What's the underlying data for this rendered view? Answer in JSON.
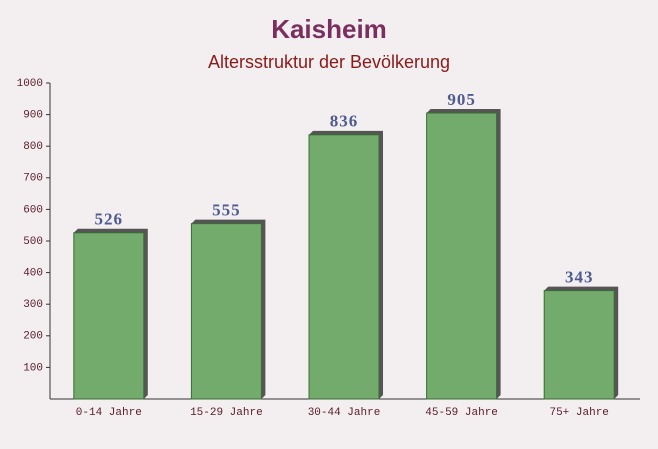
{
  "chart_data": {
    "type": "bar",
    "title": "Kaisheim",
    "subtitle": "Altersstruktur der Bevölkerung",
    "categories": [
      "0-14 Jahre",
      "15-29 Jahre",
      "30-44 Jahre",
      "45-59 Jahre",
      "75+ Jahre"
    ],
    "values": [
      526,
      555,
      836,
      905,
      343
    ],
    "color": "#6aa663",
    "ylim": [
      0,
      1000
    ],
    "yticks": [
      100,
      200,
      300,
      400,
      500,
      600,
      700,
      800,
      900,
      1000
    ],
    "grid": false
  }
}
